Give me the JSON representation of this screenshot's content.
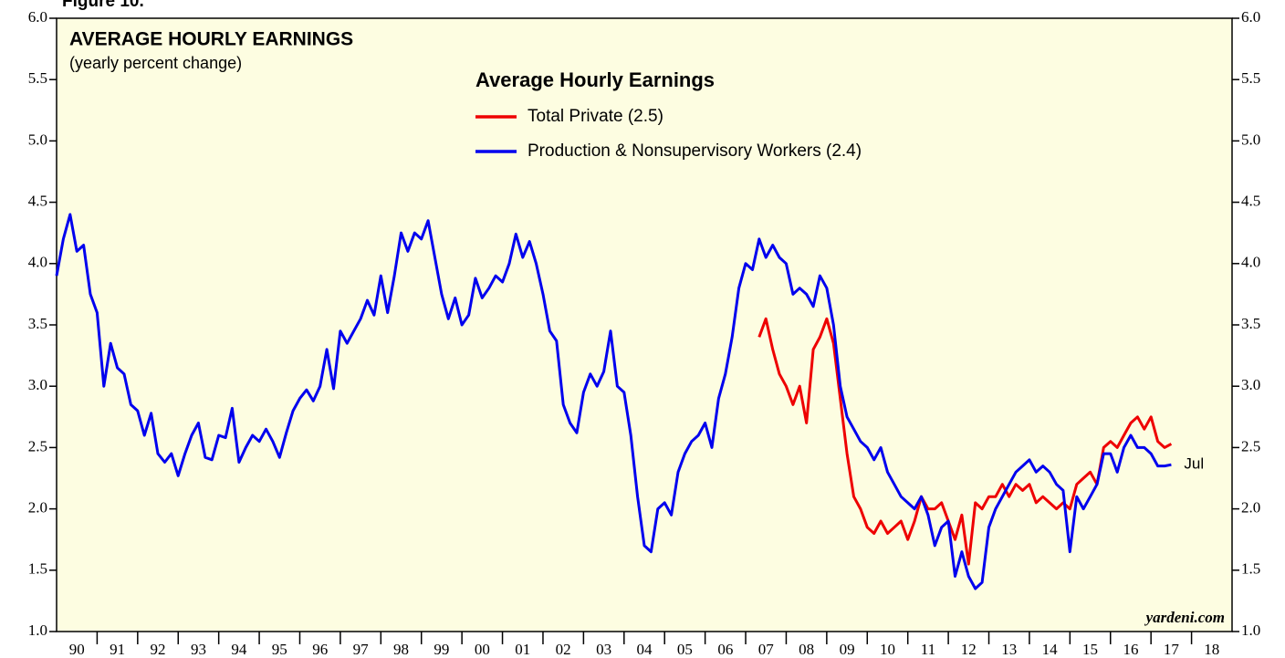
{
  "chart_data": {
    "type": "line",
    "figure_label": "Figure 10.",
    "title": "AVERAGE HOURLY EARNINGS",
    "subtitle": "(yearly percent change)",
    "legend_title": "Average Hourly Earnings",
    "annotation": "Jul",
    "source": "yardeni.com",
    "background": "#fdfde1",
    "xlim": [
      1990,
      2019
    ],
    "ylim": [
      1,
      6
    ],
    "yticks": [
      {
        "value": 1,
        "label": "1.0"
      },
      {
        "value": 1.5,
        "label": "1.5"
      },
      {
        "value": 2,
        "label": "2.0"
      },
      {
        "value": 2.5,
        "label": "2.5"
      },
      {
        "value": 3,
        "label": "3.0"
      },
      {
        "value": 3.5,
        "label": "3.5"
      },
      {
        "value": 4,
        "label": "4.0"
      },
      {
        "value": 4.5,
        "label": "4.5"
      },
      {
        "value": 5,
        "label": "5.0"
      },
      {
        "value": 5.5,
        "label": "5.5"
      },
      {
        "value": 6,
        "label": "6.0"
      }
    ],
    "xticks": [
      {
        "value": 1990,
        "label": "90"
      },
      {
        "value": 1991,
        "label": "91"
      },
      {
        "value": 1992,
        "label": "92"
      },
      {
        "value": 1993,
        "label": "93"
      },
      {
        "value": 1994,
        "label": "94"
      },
      {
        "value": 1995,
        "label": "95"
      },
      {
        "value": 1996,
        "label": "96"
      },
      {
        "value": 1997,
        "label": "97"
      },
      {
        "value": 1998,
        "label": "98"
      },
      {
        "value": 1999,
        "label": "99"
      },
      {
        "value": 2000,
        "label": "00"
      },
      {
        "value": 2001,
        "label": "01"
      },
      {
        "value": 2002,
        "label": "02"
      },
      {
        "value": 2003,
        "label": "03"
      },
      {
        "value": 2004,
        "label": "04"
      },
      {
        "value": 2005,
        "label": "05"
      },
      {
        "value": 2006,
        "label": "06"
      },
      {
        "value": 2007,
        "label": "07"
      },
      {
        "value": 2008,
        "label": "08"
      },
      {
        "value": 2009,
        "label": "09"
      },
      {
        "value": 2010,
        "label": "10"
      },
      {
        "value": 2011,
        "label": "11"
      },
      {
        "value": 2012,
        "label": "12"
      },
      {
        "value": 2013,
        "label": "13"
      },
      {
        "value": 2014,
        "label": "14"
      },
      {
        "value": 2015,
        "label": "15"
      },
      {
        "value": 2016,
        "label": "16"
      },
      {
        "value": 2017,
        "label": "17"
      },
      {
        "value": 2018,
        "label": "18"
      }
    ],
    "x": [
      1990,
      1990.167,
      1990.333,
      1990.5,
      1990.667,
      1990.833,
      1991,
      1991.167,
      1991.333,
      1991.5,
      1991.667,
      1991.833,
      1992,
      1992.167,
      1992.333,
      1992.5,
      1992.667,
      1992.833,
      1993,
      1993.167,
      1993.333,
      1993.5,
      1993.667,
      1993.833,
      1994,
      1994.167,
      1994.333,
      1994.5,
      1994.667,
      1994.833,
      1995,
      1995.167,
      1995.333,
      1995.5,
      1995.667,
      1995.833,
      1996,
      1996.167,
      1996.333,
      1996.5,
      1996.667,
      1996.833,
      1997,
      1997.167,
      1997.333,
      1997.5,
      1997.667,
      1997.833,
      1998,
      1998.167,
      1998.333,
      1998.5,
      1998.667,
      1998.833,
      1999,
      1999.167,
      1999.333,
      1999.5,
      1999.667,
      1999.833,
      2000,
      2000.167,
      2000.333,
      2000.5,
      2000.667,
      2000.833,
      2001,
      2001.167,
      2001.333,
      2001.5,
      2001.667,
      2001.833,
      2002,
      2002.167,
      2002.333,
      2002.5,
      2002.667,
      2002.833,
      2003,
      2003.167,
      2003.333,
      2003.5,
      2003.667,
      2003.833,
      2004,
      2004.167,
      2004.333,
      2004.5,
      2004.667,
      2004.833,
      2005,
      2005.167,
      2005.333,
      2005.5,
      2005.667,
      2005.833,
      2006,
      2006.167,
      2006.333,
      2006.5,
      2006.667,
      2006.833,
      2007,
      2007.167,
      2007.333,
      2007.5,
      2007.667,
      2007.833,
      2008,
      2008.167,
      2008.333,
      2008.5,
      2008.667,
      2008.833,
      2009,
      2009.167,
      2009.333,
      2009.5,
      2009.667,
      2009.833,
      2010,
      2010.167,
      2010.333,
      2010.5,
      2010.667,
      2010.833,
      2011,
      2011.167,
      2011.333,
      2011.5,
      2011.667,
      2011.833,
      2012,
      2012.167,
      2012.333,
      2012.5,
      2012.667,
      2012.833,
      2013,
      2013.167,
      2013.333,
      2013.5,
      2013.667,
      2013.833,
      2014,
      2014.167,
      2014.333,
      2014.5,
      2014.667,
      2014.833,
      2015,
      2015.167,
      2015.333,
      2015.5,
      2015.667,
      2015.833,
      2016,
      2016.167,
      2016.333,
      2016.5,
      2016.667,
      2016.833,
      2017,
      2017.167,
      2017.333,
      2017.5
    ],
    "series": [
      {
        "name": "Total Private (2.5)",
        "color": "#ee0000",
        "values": [
          null,
          null,
          null,
          null,
          null,
          null,
          null,
          null,
          null,
          null,
          null,
          null,
          null,
          null,
          null,
          null,
          null,
          null,
          null,
          null,
          null,
          null,
          null,
          null,
          null,
          null,
          null,
          null,
          null,
          null,
          null,
          null,
          null,
          null,
          null,
          null,
          null,
          null,
          null,
          null,
          null,
          null,
          null,
          null,
          null,
          null,
          null,
          null,
          null,
          null,
          null,
          null,
          null,
          null,
          null,
          null,
          null,
          null,
          null,
          null,
          null,
          null,
          null,
          null,
          null,
          null,
          null,
          null,
          null,
          null,
          null,
          null,
          null,
          null,
          null,
          null,
          null,
          null,
          null,
          null,
          null,
          null,
          null,
          null,
          null,
          null,
          null,
          null,
          null,
          null,
          null,
          null,
          null,
          null,
          null,
          null,
          null,
          null,
          null,
          null,
          null,
          null,
          null,
          null,
          3.4,
          3.55,
          3.3,
          3.1,
          3.0,
          2.85,
          3.0,
          2.7,
          3.3,
          3.4,
          3.55,
          3.35,
          2.9,
          2.45,
          2.1,
          2.0,
          1.85,
          1.8,
          1.9,
          1.8,
          1.85,
          1.9,
          1.75,
          1.9,
          2.1,
          2.0,
          2.0,
          2.05,
          1.9,
          1.75,
          1.95,
          1.55,
          2.05,
          2.0,
          2.1,
          2.1,
          2.2,
          2.1,
          2.2,
          2.15,
          2.2,
          2.05,
          2.1,
          2.05,
          2.0,
          2.05,
          2.0,
          2.2,
          2.25,
          2.3,
          2.2,
          2.5,
          2.55,
          2.5,
          2.6,
          2.7,
          2.75,
          2.65,
          2.75,
          2.55,
          2.5,
          2.53
        ]
      },
      {
        "name": "Production & Nonsupervisory Workers (2.4)",
        "color": "#0000ee",
        "values": [
          3.9,
          4.2,
          4.4,
          4.1,
          4.15,
          3.75,
          3.6,
          3.0,
          3.35,
          3.15,
          3.1,
          2.85,
          2.8,
          2.6,
          2.78,
          2.45,
          2.38,
          2.45,
          2.27,
          2.45,
          2.6,
          2.7,
          2.42,
          2.4,
          2.6,
          2.58,
          2.82,
          2.38,
          2.5,
          2.6,
          2.55,
          2.65,
          2.55,
          2.42,
          2.62,
          2.8,
          2.9,
          2.97,
          2.88,
          3.0,
          3.3,
          2.98,
          3.45,
          3.35,
          3.45,
          3.55,
          3.7,
          3.58,
          3.9,
          3.6,
          3.9,
          4.25,
          4.1,
          4.25,
          4.2,
          4.35,
          4.05,
          3.75,
          3.55,
          3.72,
          3.5,
          3.58,
          3.88,
          3.72,
          3.8,
          3.9,
          3.85,
          4.0,
          4.24,
          4.05,
          4.18,
          4.0,
          3.75,
          3.45,
          3.37,
          2.85,
          2.7,
          2.62,
          2.95,
          3.1,
          3.0,
          3.12,
          3.45,
          3.0,
          2.95,
          2.6,
          2.1,
          1.7,
          1.65,
          2.0,
          2.05,
          1.95,
          2.3,
          2.45,
          2.55,
          2.6,
          2.7,
          2.5,
          2.9,
          3.1,
          3.4,
          3.8,
          4.0,
          3.95,
          4.2,
          4.05,
          4.15,
          4.05,
          4.0,
          3.75,
          3.8,
          3.75,
          3.65,
          3.9,
          3.8,
          3.5,
          3.0,
          2.75,
          2.65,
          2.55,
          2.5,
          2.4,
          2.5,
          2.3,
          2.2,
          2.1,
          2.05,
          2.0,
          2.1,
          1.95,
          1.7,
          1.85,
          1.9,
          1.45,
          1.65,
          1.45,
          1.35,
          1.4,
          1.85,
          2.0,
          2.1,
          2.2,
          2.3,
          2.35,
          2.4,
          2.3,
          2.35,
          2.3,
          2.2,
          2.15,
          1.65,
          2.1,
          2.0,
          2.1,
          2.2,
          2.45,
          2.45,
          2.3,
          2.5,
          2.6,
          2.5,
          2.5,
          2.45,
          2.35,
          2.35,
          2.36
        ]
      }
    ]
  }
}
